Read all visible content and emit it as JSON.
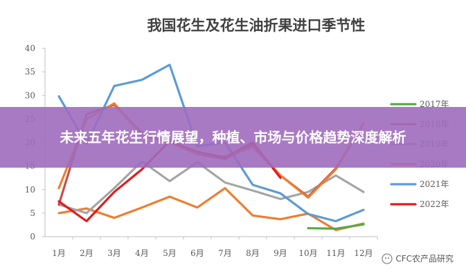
{
  "banner": {
    "text": "未来五年花生行情展望，种植、市场与价格趋势深度解析"
  },
  "watermark": {
    "text": "CFC农产品研究"
  },
  "chart_data": {
    "type": "line",
    "title": "我国花生及花生油折果进口季节性",
    "xlabel": "",
    "ylabel": "",
    "categories": [
      "1月",
      "2月",
      "3月",
      "4月",
      "5月",
      "6月",
      "7月",
      "8月",
      "9月",
      "10月",
      "11月",
      "12月"
    ],
    "ylim": [
      0,
      40
    ],
    "yticks": [
      0,
      5,
      10,
      15,
      20,
      25,
      30,
      35,
      40
    ],
    "grid": false,
    "legend": "right",
    "series": [
      {
        "name": "2017年",
        "color": "#5aa843",
        "values": [
          null,
          null,
          null,
          null,
          null,
          null,
          null,
          null,
          null,
          1.8,
          1.7,
          2.6
        ]
      },
      {
        "name": "2018年",
        "color": "#c0504d",
        "values": [
          6.8,
          26.0,
          28.0,
          22.0,
          20.5,
          17.5,
          16.5,
          19.5,
          13.0,
          8.5,
          14.5,
          24.0
        ]
      },
      {
        "name": "2019年",
        "color": "#a5a5a5",
        "values": [
          6.8,
          5.0,
          10.3,
          16.0,
          11.8,
          15.8,
          11.5,
          9.8,
          8.0,
          9.5,
          13.0,
          9.5
        ]
      },
      {
        "name": "2020年",
        "color": "#ed7d31",
        "values": [
          10.3,
          25.0,
          28.3,
          21.5,
          20.0,
          17.5,
          17.0,
          19.0,
          13.0,
          8.3,
          14.3,
          24.0
        ]
      },
      {
        "name": "2021年",
        "color": "#5b9bd5",
        "values": [
          29.8,
          19.7,
          32.0,
          33.3,
          36.5,
          19.2,
          20.0,
          11.0,
          9.2,
          4.8,
          3.3,
          5.7
        ]
      },
      {
        "name": "2022年",
        "color": "#e31a1c",
        "values": [
          7.5,
          3.3,
          9.5,
          14.3,
          20.3,
          18.0,
          16.8,
          20.0,
          12.5,
          null,
          null,
          null
        ]
      },
      {
        "name": "",
        "color": "#ed7d31",
        "values": [
          5.0,
          6.0,
          4.0,
          6.2,
          8.5,
          6.2,
          10.3,
          4.5,
          3.7,
          4.9,
          1.4,
          2.8
        ]
      }
    ]
  }
}
